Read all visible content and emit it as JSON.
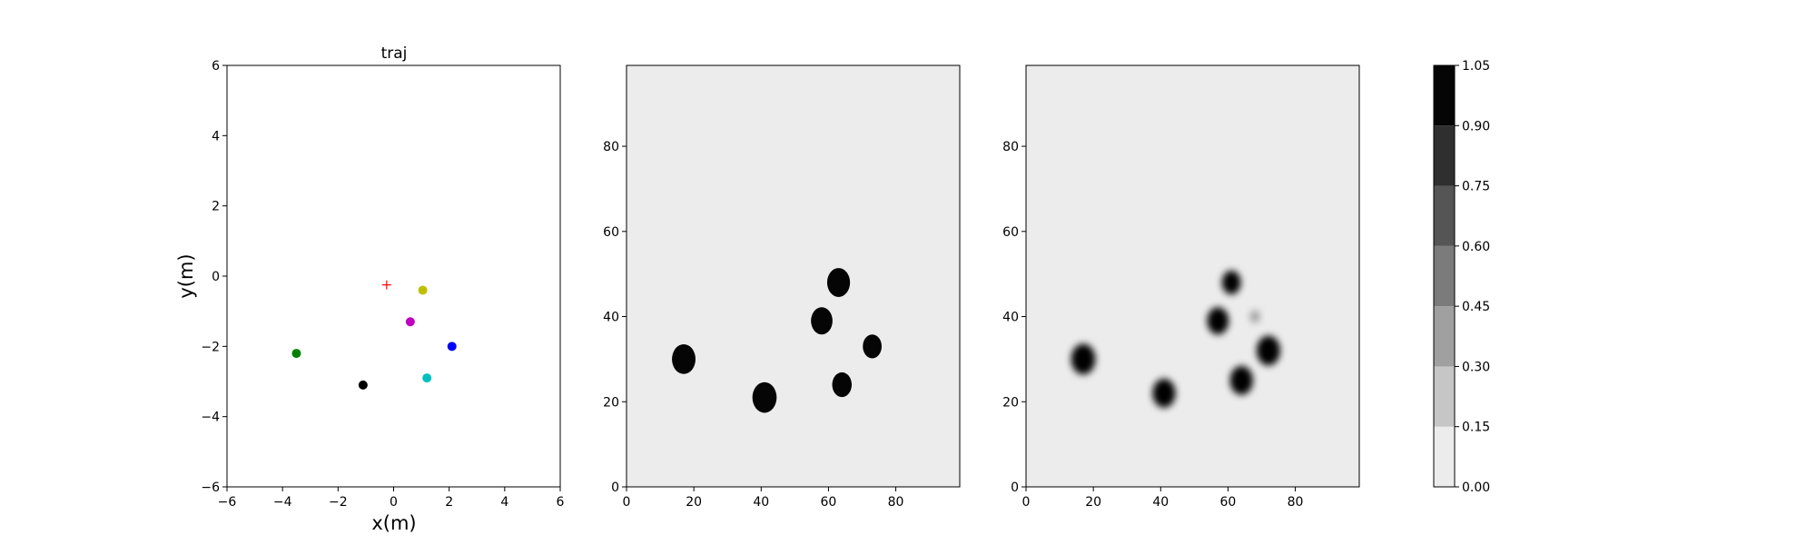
{
  "chart_data": [
    {
      "type": "scatter",
      "title": "traj",
      "xlabel": "x(m)",
      "ylabel": "y(m)",
      "xlim": [
        -6,
        6
      ],
      "ylim": [
        -6,
        6
      ],
      "xticks": [
        "−6",
        "−4",
        "−2",
        "0",
        "2",
        "4",
        "6"
      ],
      "yticks": [
        "−6",
        "−4",
        "−2",
        "0",
        "2",
        "4",
        "6"
      ],
      "grid": false,
      "points": [
        {
          "x": -3.5,
          "y": -2.2,
          "color": "#008000",
          "marker": "circle"
        },
        {
          "x": -1.1,
          "y": -3.1,
          "color": "#000000",
          "marker": "circle"
        },
        {
          "x": 0.6,
          "y": -1.3,
          "color": "#bf00bf",
          "marker": "circle"
        },
        {
          "x": 1.05,
          "y": -0.4,
          "color": "#bfbf00",
          "marker": "circle"
        },
        {
          "x": 2.1,
          "y": -2.0,
          "color": "#0000ff",
          "marker": "circle"
        },
        {
          "x": 1.2,
          "y": -2.9,
          "color": "#00bfbf",
          "marker": "circle"
        },
        {
          "x": -0.25,
          "y": -0.25,
          "color": "#ff0000",
          "marker": "plus"
        }
      ]
    },
    {
      "type": "heatmap",
      "xlim": [
        0,
        99
      ],
      "ylim": [
        0,
        99
      ],
      "xticks": [
        "0",
        "20",
        "40",
        "60",
        "80"
      ],
      "yticks": [
        "0",
        "20",
        "40",
        "60",
        "80"
      ],
      "background_level": 0.0,
      "blobs": [
        {
          "x": 17,
          "y": 30,
          "r": 3.5,
          "level": 1.0
        },
        {
          "x": 41,
          "y": 21,
          "r": 3.6,
          "level": 1.0
        },
        {
          "x": 58,
          "y": 39,
          "r": 3.2,
          "level": 1.0
        },
        {
          "x": 63,
          "y": 48,
          "r": 3.4,
          "level": 1.0
        },
        {
          "x": 73,
          "y": 33,
          "r": 2.8,
          "level": 1.0
        },
        {
          "x": 64,
          "y": 24,
          "r": 2.9,
          "level": 1.0
        }
      ]
    },
    {
      "type": "heatmap",
      "xlim": [
        0,
        99
      ],
      "ylim": [
        0,
        99
      ],
      "xticks": [
        "0",
        "20",
        "40",
        "60",
        "80"
      ],
      "yticks": [
        "0",
        "20",
        "40",
        "60",
        "80"
      ],
      "background_level": 0.0,
      "blobs": [
        {
          "x": 17,
          "y": 30,
          "r": 3.6,
          "level": 1.0
        },
        {
          "x": 41,
          "y": 22,
          "r": 3.4,
          "level": 1.0
        },
        {
          "x": 57,
          "y": 39,
          "r": 3.2,
          "level": 1.0
        },
        {
          "x": 61,
          "y": 48,
          "r": 2.8,
          "level": 1.0
        },
        {
          "x": 72,
          "y": 32,
          "r": 3.5,
          "level": 1.0
        },
        {
          "x": 64,
          "y": 25,
          "r": 3.4,
          "level": 1.0
        },
        {
          "x": 68,
          "y": 40,
          "r": 1.5,
          "level": 0.3
        }
      ]
    }
  ],
  "colorbar": {
    "levels": [
      0.0,
      0.15,
      0.3,
      0.45,
      0.6,
      0.75,
      0.9,
      1.05
    ],
    "tick_labels": [
      "0.00",
      "0.15",
      "0.30",
      "0.45",
      "0.60",
      "0.75",
      "0.90",
      "1.05"
    ],
    "colors": [
      "#ececec",
      "#c6c6c6",
      "#a0a0a0",
      "#7b7b7b",
      "#555555",
      "#2f2f2f",
      "#050505"
    ]
  }
}
